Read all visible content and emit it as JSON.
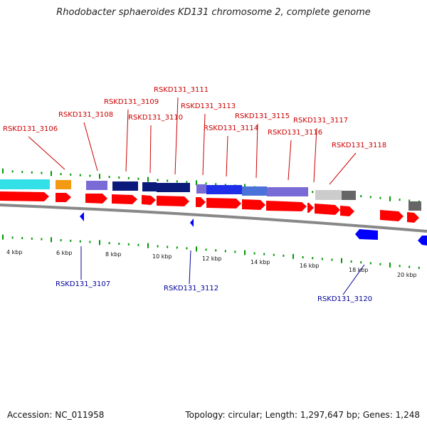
{
  "title": "Rhodobacter sphaeroides KD131 chromosome 2, complete genome",
  "footer": {
    "accession": "Accession: NC_011958",
    "summary": "Topology: circular; Length: 1,297,647 bp; Genes: 1,248"
  },
  "colors": {
    "cds": "#ff0000",
    "strand_minus": "#0000ff",
    "label_plus": "#cc0000",
    "label_minus": "#000099",
    "backbone": "#888888",
    "ticks": "#009900"
  },
  "diagram": {
    "scale_labels": [
      "4 kbp",
      "6 kbp",
      "8 kbp",
      "10 kbp",
      "12 kbp",
      "14 kbp",
      "16 kbp",
      "18 kbp",
      "20 kbp"
    ],
    "plus_genes": [
      {
        "name": "RSKD131_3106"
      },
      {
        "name": "RSKD131_3108"
      },
      {
        "name": "RSKD131_3109"
      },
      {
        "name": "RSKD131_3110"
      },
      {
        "name": "RSKD131_3111"
      },
      {
        "name": "RSKD131_3113"
      },
      {
        "name": "RSKD131_3114"
      },
      {
        "name": "RSKD131_3115"
      },
      {
        "name": "RSKD131_3116"
      },
      {
        "name": "RSKD131_3117"
      },
      {
        "name": "RSKD131_3118"
      }
    ],
    "minus_genes": [
      {
        "name": "RSKD131_3107"
      },
      {
        "name": "RSKD131_3112"
      },
      {
        "name": "RSKD131_3120"
      }
    ]
  }
}
